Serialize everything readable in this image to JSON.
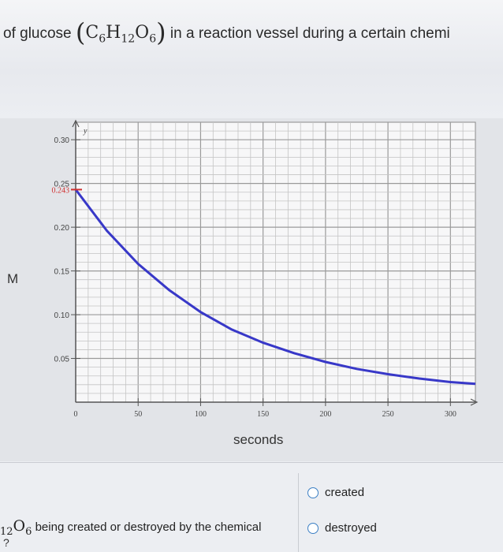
{
  "header": {
    "text_before": "of glucose",
    "formula_c": "C",
    "formula_c_sub": "6",
    "formula_h": "H",
    "formula_h_sub": "12",
    "formula_o": "O",
    "formula_o_sub": "6",
    "text_after": "in a reaction vessel during a certain chemi"
  },
  "chart_data": {
    "type": "line",
    "ylabel": "M",
    "xlabel": "seconds",
    "y_axis_letter": "y",
    "x_ticks": [
      0,
      50,
      100,
      150,
      200,
      250,
      300
    ],
    "x_tick_labels": [
      "0",
      "50",
      "100",
      "150",
      "200",
      "250",
      "300"
    ],
    "y_ticks": [
      0.05,
      0.1,
      0.15,
      0.2,
      0.25,
      0.3
    ],
    "y_tick_labels": [
      "0.05",
      "0.10",
      "0.15",
      "0.20",
      "0.25",
      "0.30"
    ],
    "initial_marker_label": "0.243",
    "xlim": [
      0,
      320
    ],
    "ylim": [
      0,
      0.32
    ],
    "grid": true,
    "series": [
      {
        "color": "#3838c8",
        "x": [
          0,
          25,
          50,
          75,
          100,
          125,
          150,
          175,
          200,
          225,
          250,
          275,
          300,
          320
        ],
        "y": [
          0.243,
          0.196,
          0.158,
          0.128,
          0.103,
          0.083,
          0.068,
          0.056,
          0.046,
          0.038,
          0.032,
          0.027,
          0.023,
          0.021
        ]
      }
    ],
    "marker_color": "#d03030"
  },
  "question": {
    "formula_sub_left": "12",
    "formula_o": "O",
    "formula_o_sub": "6",
    "text": "being created or destroyed by the chemical",
    "second_line": "?"
  },
  "options": [
    {
      "label": "created"
    },
    {
      "label": "destroyed"
    }
  ]
}
